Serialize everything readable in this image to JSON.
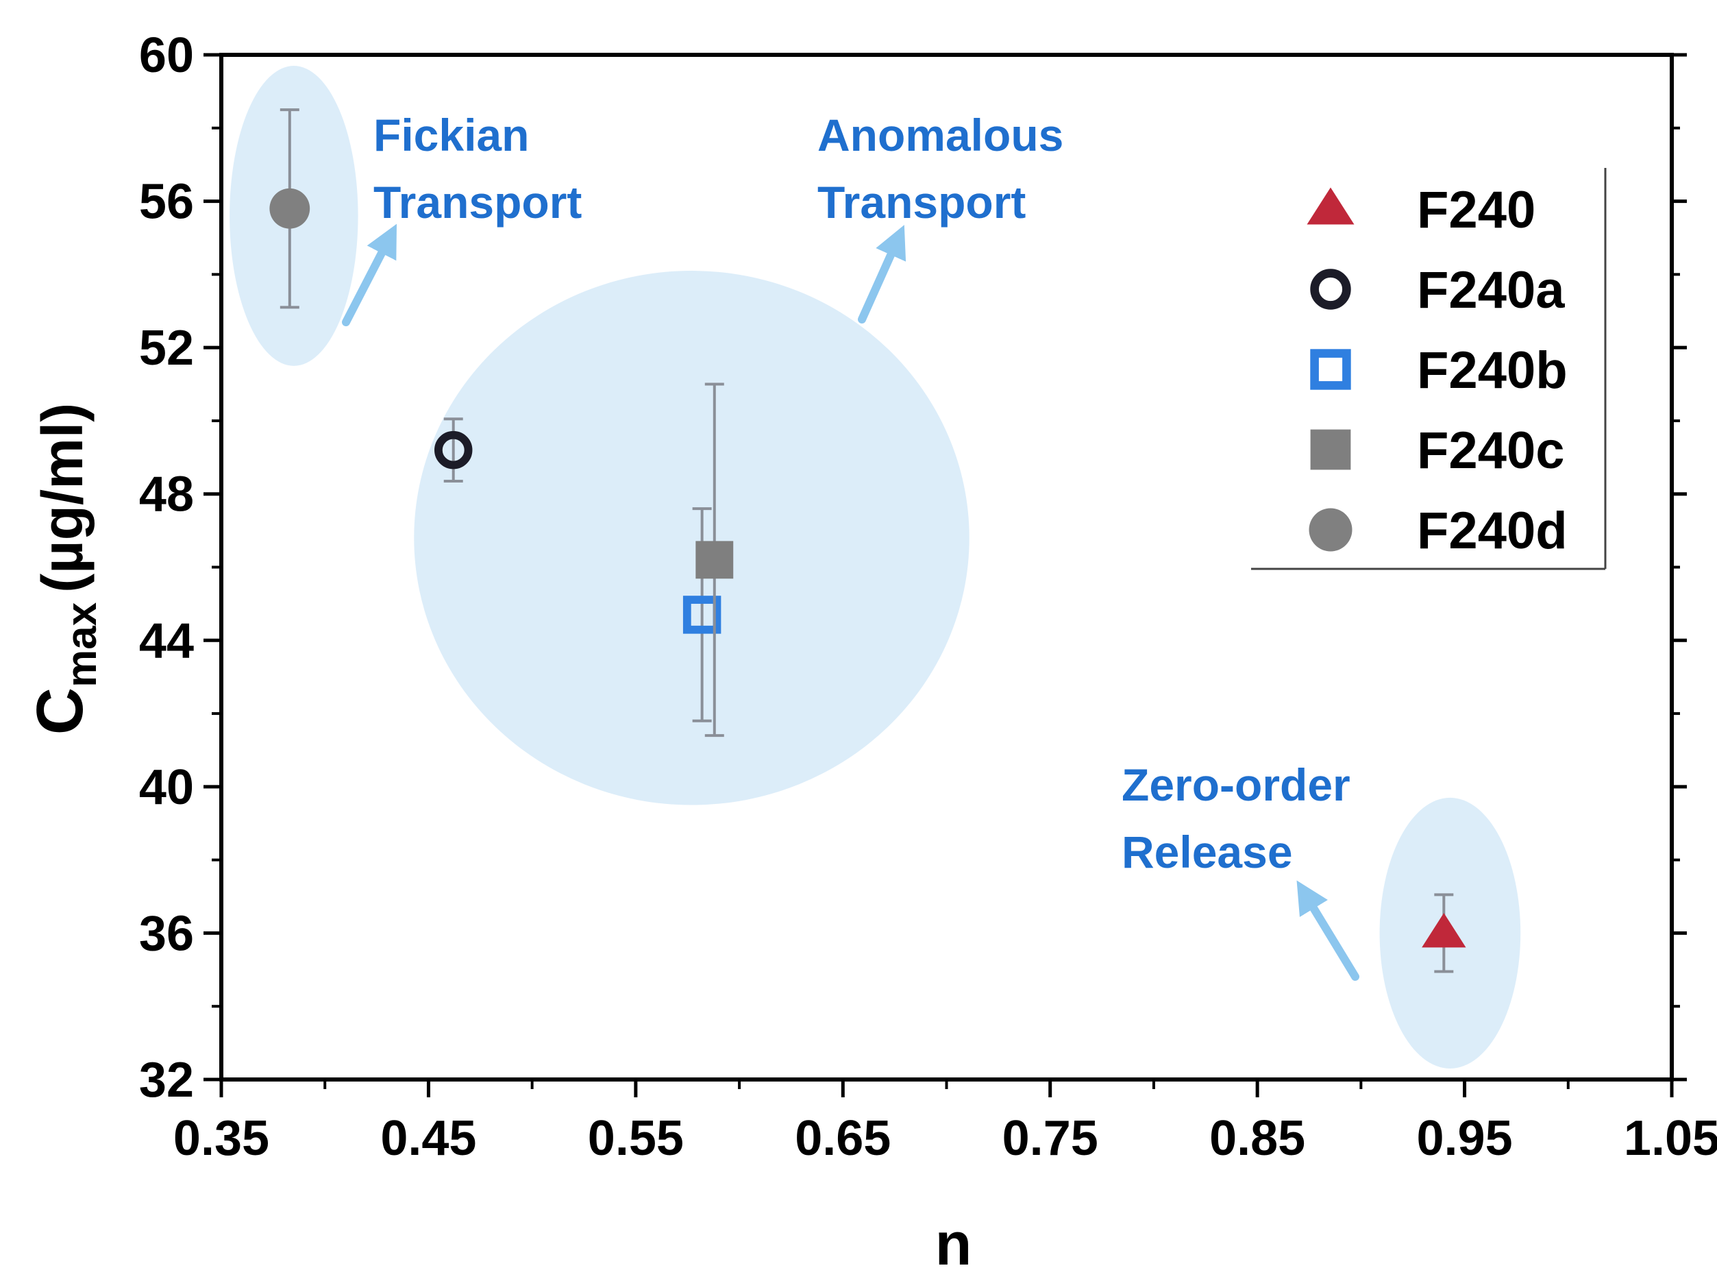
{
  "chart_data": {
    "type": "scatter",
    "xlabel": "n",
    "ylabel_main": "C",
    "ylabel_sub": "max",
    "ylabel_unit": "(µg/ml)",
    "xlim": [
      0.35,
      1.05
    ],
    "ylim": [
      32,
      60
    ],
    "x_ticks": [
      "0.35",
      "0.45",
      "0.55",
      "0.65",
      "0.75",
      "0.85",
      "0.95",
      "1.05"
    ],
    "y_ticks": [
      "32",
      "36",
      "40",
      "44",
      "48",
      "52",
      "56",
      "60"
    ],
    "legend_position": "top-right",
    "series": [
      {
        "name": "F240",
        "marker": "triangle",
        "color": "#c0283a",
        "x": 0.94,
        "y": 36.0,
        "err": 1.05
      },
      {
        "name": "F240a",
        "marker": "circle-open",
        "color": "#1c1c28",
        "x": 0.462,
        "y": 49.2,
        "err": 0.85
      },
      {
        "name": "F240b",
        "marker": "square-open",
        "color": "#2f7fe0",
        "x": 0.582,
        "y": 44.7,
        "err": 2.9
      },
      {
        "name": "F240c",
        "marker": "square-filled",
        "color": "#7f7f7f",
        "x": 0.588,
        "y": 46.2,
        "err": 4.8
      },
      {
        "name": "F240d",
        "marker": "circle-filled",
        "color": "#808080",
        "x": 0.383,
        "y": 55.8,
        "err": 2.7
      }
    ],
    "regions": [
      {
        "name": "fickian",
        "label_lines": [
          "Fickian",
          "Transport"
        ],
        "cx": 0.385,
        "cy": 55.6,
        "rx": 0.031,
        "ry": 4.1
      },
      {
        "name": "anomalous",
        "label_lines": [
          "Anomalous",
          "Transport"
        ],
        "cx": 0.577,
        "cy": 46.8,
        "rx": 0.134,
        "ry": 7.3
      },
      {
        "name": "zero-order",
        "label_lines": [
          "Zero-order",
          "Release"
        ],
        "cx": 0.943,
        "cy": 36.0,
        "rx": 0.034,
        "ry": 3.7
      }
    ],
    "colors": {
      "annotation_text": "#1f6fce",
      "region_fill": "#d6eaf8",
      "arrow": "#8cc6ee"
    }
  }
}
